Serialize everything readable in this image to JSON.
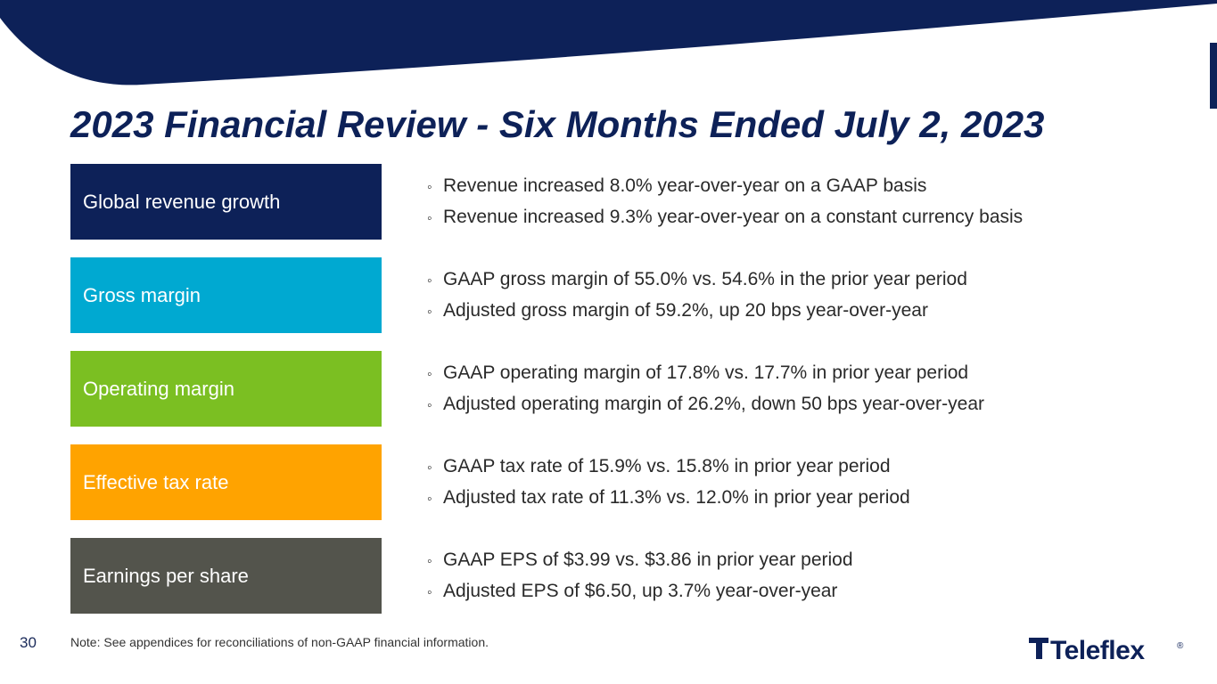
{
  "header": {
    "title": "2023 Financial Review - Six Months Ended July 2, 2023"
  },
  "rows": [
    {
      "label": "Global revenue growth",
      "color": "#0d2158",
      "bullets": [
        "Revenue increased 8.0% year-over-year on a GAAP basis",
        "Revenue increased 9.3% year-over-year on a constant currency basis"
      ]
    },
    {
      "label": "Gross margin",
      "color": "#00a9d1",
      "bullets": [
        "GAAP gross margin of 55.0% vs. 54.6% in the prior year period",
        "Adjusted gross margin of 59.2%, up 20 bps year-over-year"
      ]
    },
    {
      "label": "Operating margin",
      "color": "#7bbf22",
      "bullets": [
        "GAAP operating margin of 17.8% vs. 17.7% in prior year period",
        "Adjusted operating margin of 26.2%, down 50 bps year-over-year"
      ]
    },
    {
      "label": "Effective tax rate",
      "color": "#ffa300",
      "bullets": [
        "GAAP tax rate of 15.9% vs. 15.8% in prior year period",
        "Adjusted tax rate of 11.3% vs. 12.0% in prior year period"
      ]
    },
    {
      "label": "Earnings per share",
      "color": "#53544c",
      "bullets": [
        "GAAP EPS of $3.99 vs. $3.86 in prior year period",
        "Adjusted EPS of $6.50, up 3.7% year-over-year"
      ]
    }
  ],
  "footer": {
    "page_number": "30",
    "note": "Note: See appendices for reconciliations of non-GAAP financial information.",
    "logo_text": "Teleflex",
    "logo_mark": "®"
  },
  "colors": {
    "navy": "#0d2158"
  }
}
